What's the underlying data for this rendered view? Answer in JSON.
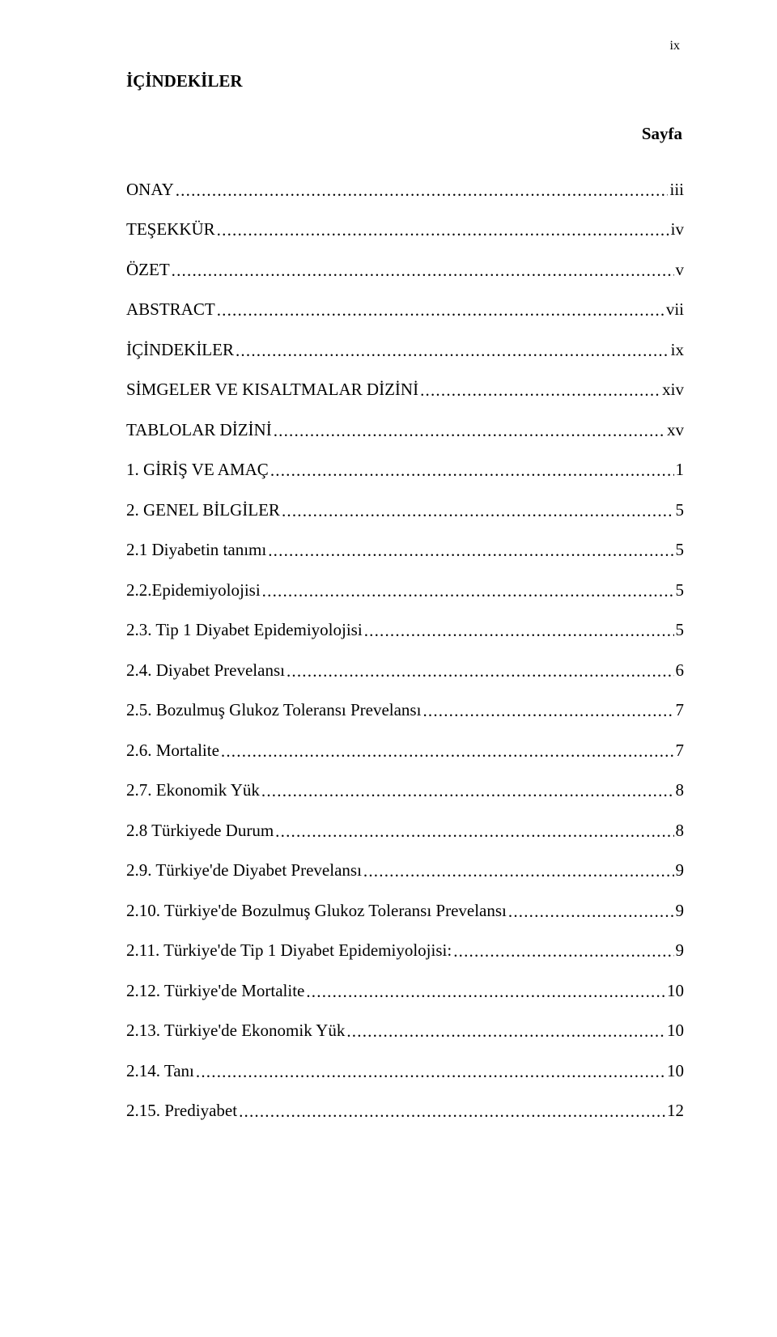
{
  "pageCornerNumber": "ix",
  "heading": "İÇİNDEKİLER",
  "pageLabel": "Sayfa",
  "entries": [
    {
      "label": "ONAY",
      "page": "iii"
    },
    {
      "label": "TEŞEKKÜR",
      "page": "iv"
    },
    {
      "label": "ÖZET",
      "page": "v"
    },
    {
      "label": "ABSTRACT",
      "page": "vii"
    },
    {
      "label": "İÇİNDEKİLER",
      "page": "ix"
    },
    {
      "label": "SİMGELER VE KISALTMALAR DİZİNİ",
      "page": "xiv"
    },
    {
      "label": "TABLOLAR DİZİNİ",
      "page": "xv"
    },
    {
      "label": "1. GİRİŞ VE AMAÇ",
      "page": "1"
    },
    {
      "label": "2. GENEL BİLGİLER",
      "page": "5"
    },
    {
      "label": "2.1 Diyabetin tanımı",
      "page": "5"
    },
    {
      "label": "2.2.Epidemiyolojisi",
      "page": "5"
    },
    {
      "label": "2.3. Tip 1 Diyabet Epidemiyolojisi",
      "page": "5"
    },
    {
      "label": "2.4. Diyabet Prevelansı",
      "page": "6"
    },
    {
      "label": "2.5. Bozulmuş Glukoz Toleransı Prevelansı",
      "page": "7"
    },
    {
      "label": "2.6. Mortalite",
      "page": "7"
    },
    {
      "label": "2.7. Ekonomik Yük",
      "page": "8"
    },
    {
      "label": "2.8 Türkiyede Durum",
      "page": "8"
    },
    {
      "label": "2.9. Türkiye'de Diyabet Prevelansı",
      "page": "9"
    },
    {
      "label": "2.10. Türkiye'de Bozulmuş Glukoz Toleransı Prevelansı",
      "page": "9"
    },
    {
      "label": "2.11. Türkiye'de Tip 1 Diyabet Epidemiyolojisi:",
      "page": "9"
    },
    {
      "label": "2.12. Türkiye'de Mortalite",
      "page": "10"
    },
    {
      "label": "2.13. Türkiye'de Ekonomik Yük",
      "page": "10"
    },
    {
      "label": "2.14. Tanı",
      "page": "10"
    },
    {
      "label": "2.15. Prediyabet",
      "page": "12"
    }
  ]
}
